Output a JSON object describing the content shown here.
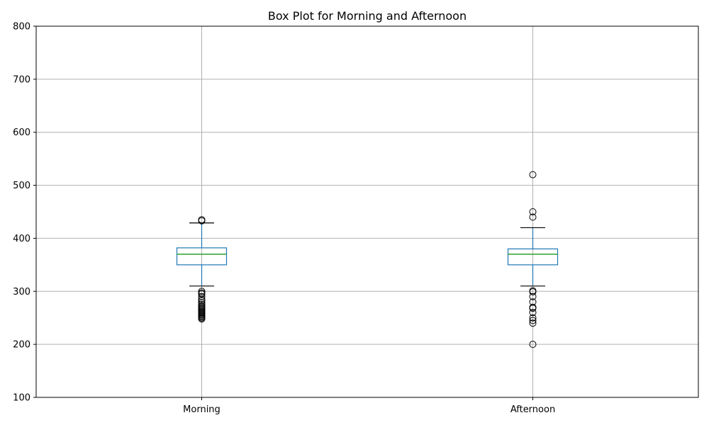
{
  "chart_data": {
    "type": "box",
    "title": "Box Plot for Morning and Afternoon",
    "xlabel": "",
    "ylabel": "",
    "ylim": [
      100,
      800
    ],
    "yticks": [
      100,
      200,
      300,
      400,
      500,
      600,
      700,
      800
    ],
    "grid": true,
    "legend": "none",
    "categories": [
      "Morning",
      "Afternoon"
    ],
    "boxes": [
      {
        "category": "Morning",
        "whisker_low": 310,
        "q1": 350,
        "median": 370,
        "q3": 382,
        "whisker_high": 429,
        "outliers": [
          435,
          433,
          300,
          297,
          295,
          290,
          285,
          282,
          278,
          275,
          272,
          270,
          268,
          266,
          264,
          262,
          260,
          258,
          256,
          254,
          252,
          250,
          248
        ]
      },
      {
        "category": "Afternoon",
        "whisker_low": 310,
        "q1": 350,
        "median": 370,
        "q3": 380,
        "whisker_high": 420,
        "outliers": [
          520,
          450,
          440,
          301,
          299,
          290,
          280,
          270,
          268,
          260,
          250,
          245,
          240,
          200
        ]
      }
    ],
    "colors": {
      "box": "#1f77b4",
      "median": "#2ca02c",
      "whisker_cap": "#000000",
      "outlier": "#000000",
      "grid": "#b0b0b0"
    }
  }
}
